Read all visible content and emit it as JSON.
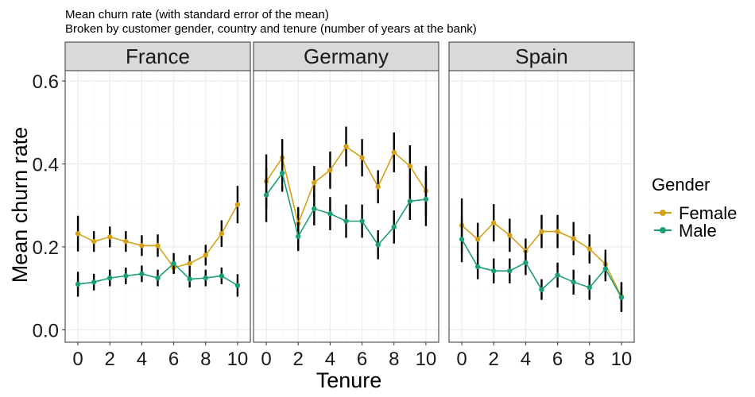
{
  "chart_data": {
    "type": "line",
    "title_lines": [
      "Mean churn rate (with standard error of the mean)",
      "Broken by customer gender, country and tenure (number of years at the bank)"
    ],
    "xlabel": "Tenure",
    "ylabel": "Mean churn rate",
    "x": [
      0,
      1,
      2,
      3,
      4,
      5,
      6,
      7,
      8,
      9,
      10
    ],
    "xticks": [
      "0",
      "2",
      "4",
      "6",
      "8",
      "10"
    ],
    "yticks": [
      "0.0",
      "0.2",
      "0.4",
      "0.6"
    ],
    "xlim": [
      -0.8,
      10.8
    ],
    "ylim": [
      -0.03,
      0.625
    ],
    "grid": true,
    "legend": {
      "title": "Gender",
      "position": "right",
      "entries": [
        "Female",
        "Male"
      ]
    },
    "colors": {
      "Female": "#D4A017",
      "Male": "#1B9E77",
      "error_bar": "#000000",
      "strip": "#D9D9D9"
    },
    "panels": [
      {
        "name": "France",
        "series": [
          {
            "name": "Female",
            "values": [
              0.232,
              0.213,
              0.224,
              0.213,
              0.203,
              0.203,
              0.15,
              0.16,
              0.18,
              0.232,
              0.302
            ],
            "se": [
              0.043,
              0.025,
              0.025,
              0.025,
              0.025,
              0.027,
              0.015,
              0.02,
              0.025,
              0.032,
              0.045
            ]
          },
          {
            "name": "Male",
            "values": [
              0.11,
              0.115,
              0.125,
              0.13,
              0.135,
              0.125,
              0.16,
              0.122,
              0.125,
              0.13,
              0.107
            ],
            "se": [
              0.03,
              0.02,
              0.02,
              0.02,
              0.02,
              0.02,
              0.025,
              0.02,
              0.02,
              0.02,
              0.027
            ]
          }
        ]
      },
      {
        "name": "Germany",
        "series": [
          {
            "name": "Female",
            "values": [
              0.358,
              0.415,
              0.256,
              0.355,
              0.385,
              0.442,
              0.415,
              0.345,
              0.428,
              0.395,
              0.335
            ],
            "se": [
              0.065,
              0.045,
              0.04,
              0.04,
              0.045,
              0.048,
              0.045,
              0.04,
              0.048,
              0.05,
              0.06
            ]
          },
          {
            "name": "Male",
            "values": [
              0.325,
              0.378,
              0.225,
              0.292,
              0.28,
              0.262,
              0.262,
              0.205,
              0.248,
              0.31,
              0.315
            ],
            "se": [
              0.065,
              0.045,
              0.035,
              0.04,
              0.04,
              0.04,
              0.04,
              0.035,
              0.04,
              0.045,
              0.065
            ]
          }
        ]
      },
      {
        "name": "Spain",
        "series": [
          {
            "name": "Female",
            "values": [
              0.252,
              0.218,
              0.258,
              0.228,
              0.19,
              0.237,
              0.237,
              0.22,
              0.195,
              0.158,
              0.08
            ],
            "se": [
              0.065,
              0.04,
              0.045,
              0.04,
              0.03,
              0.04,
              0.04,
              0.04,
              0.035,
              0.035,
              0.035
            ]
          },
          {
            "name": "Male",
            "values": [
              0.218,
              0.152,
              0.142,
              0.142,
              0.162,
              0.097,
              0.132,
              0.115,
              0.102,
              0.147,
              0.078
            ],
            "se": [
              0.055,
              0.03,
              0.03,
              0.03,
              0.03,
              0.025,
              0.03,
              0.03,
              0.03,
              0.03,
              0.035
            ]
          }
        ]
      }
    ]
  }
}
